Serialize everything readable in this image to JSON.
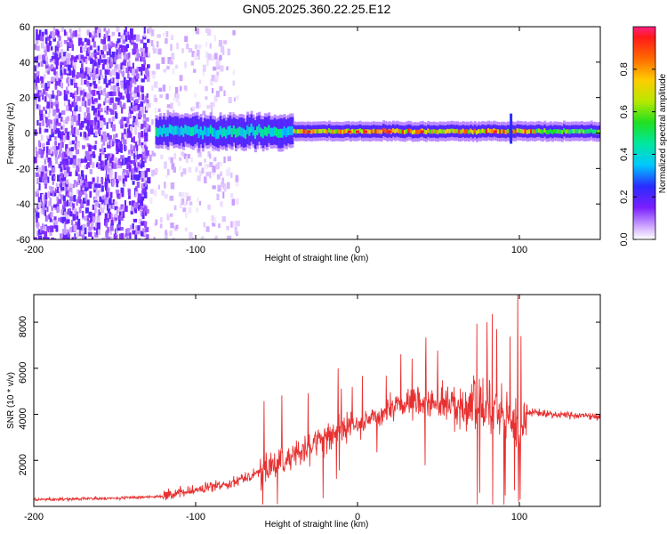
{
  "title": "GN05.2025.360.22.25.E12",
  "chart_data": [
    {
      "type": "heatmap",
      "xlabel": "Height of straight line (km)",
      "ylabel": "Frequency (Hz)",
      "xlim": [
        -200,
        150
      ],
      "ylim": [
        -60,
        60
      ],
      "xticks": [
        -200,
        -100,
        0,
        100
      ],
      "xtick_labels": [
        "-200",
        "-100",
        "0",
        "100"
      ],
      "yticks": [
        -60,
        -40,
        -20,
        0,
        20,
        40,
        60
      ],
      "ytick_labels": [
        "-60",
        "-40",
        "-20",
        "0",
        "20",
        "40",
        "60"
      ],
      "colorbar": {
        "label": "Normalized spectral amplitude",
        "range": [
          0,
          1
        ],
        "ticks": [
          0.0,
          0.2,
          0.4,
          0.6,
          0.8
        ],
        "tick_labels": [
          "0.0",
          "0.2",
          "0.4",
          "0.6",
          "0.8"
        ]
      },
      "regions": [
        {
          "name": "sparse noise",
          "x_range": [
            -200,
            -130
          ],
          "freq_range": [
            -60,
            60
          ],
          "amplitude": 0.05
        },
        {
          "name": "faint noise",
          "x_range": [
            -130,
            -75
          ],
          "freq_range": [
            -60,
            60
          ],
          "amplitude": 0.02
        },
        {
          "name": "signal band",
          "x_range": [
            -125,
            150
          ],
          "center_freq": 1,
          "peak_amplitude": 0.97
        }
      ]
    },
    {
      "type": "line",
      "xlabel": "Height of straight line (km)",
      "ylabel": "SNR (10 * v/v)",
      "xlim": [
        -200,
        150
      ],
      "ylim": [
        0,
        9200
      ],
      "xticks": [
        -200,
        -100,
        0,
        100
      ],
      "xtick_labels": [
        "-200",
        "-100",
        "0",
        "100"
      ],
      "yticks": [
        2000,
        4000,
        6000,
        8000
      ],
      "ytick_labels": [
        "2000",
        "4000",
        "6000",
        "8000"
      ],
      "series": [
        {
          "name": "SNR",
          "color": "#e83030",
          "x": [
            -200,
            -150,
            -120,
            -100,
            -80,
            -60,
            -40,
            -20,
            0,
            20,
            40,
            60,
            80,
            95,
            100,
            105,
            120,
            150
          ],
          "values": [
            300,
            350,
            450,
            700,
            1000,
            1500,
            2200,
            3000,
            3600,
            4200,
            4500,
            4500,
            4300,
            4000,
            3000,
            4100,
            4000,
            3900
          ]
        }
      ]
    }
  ]
}
